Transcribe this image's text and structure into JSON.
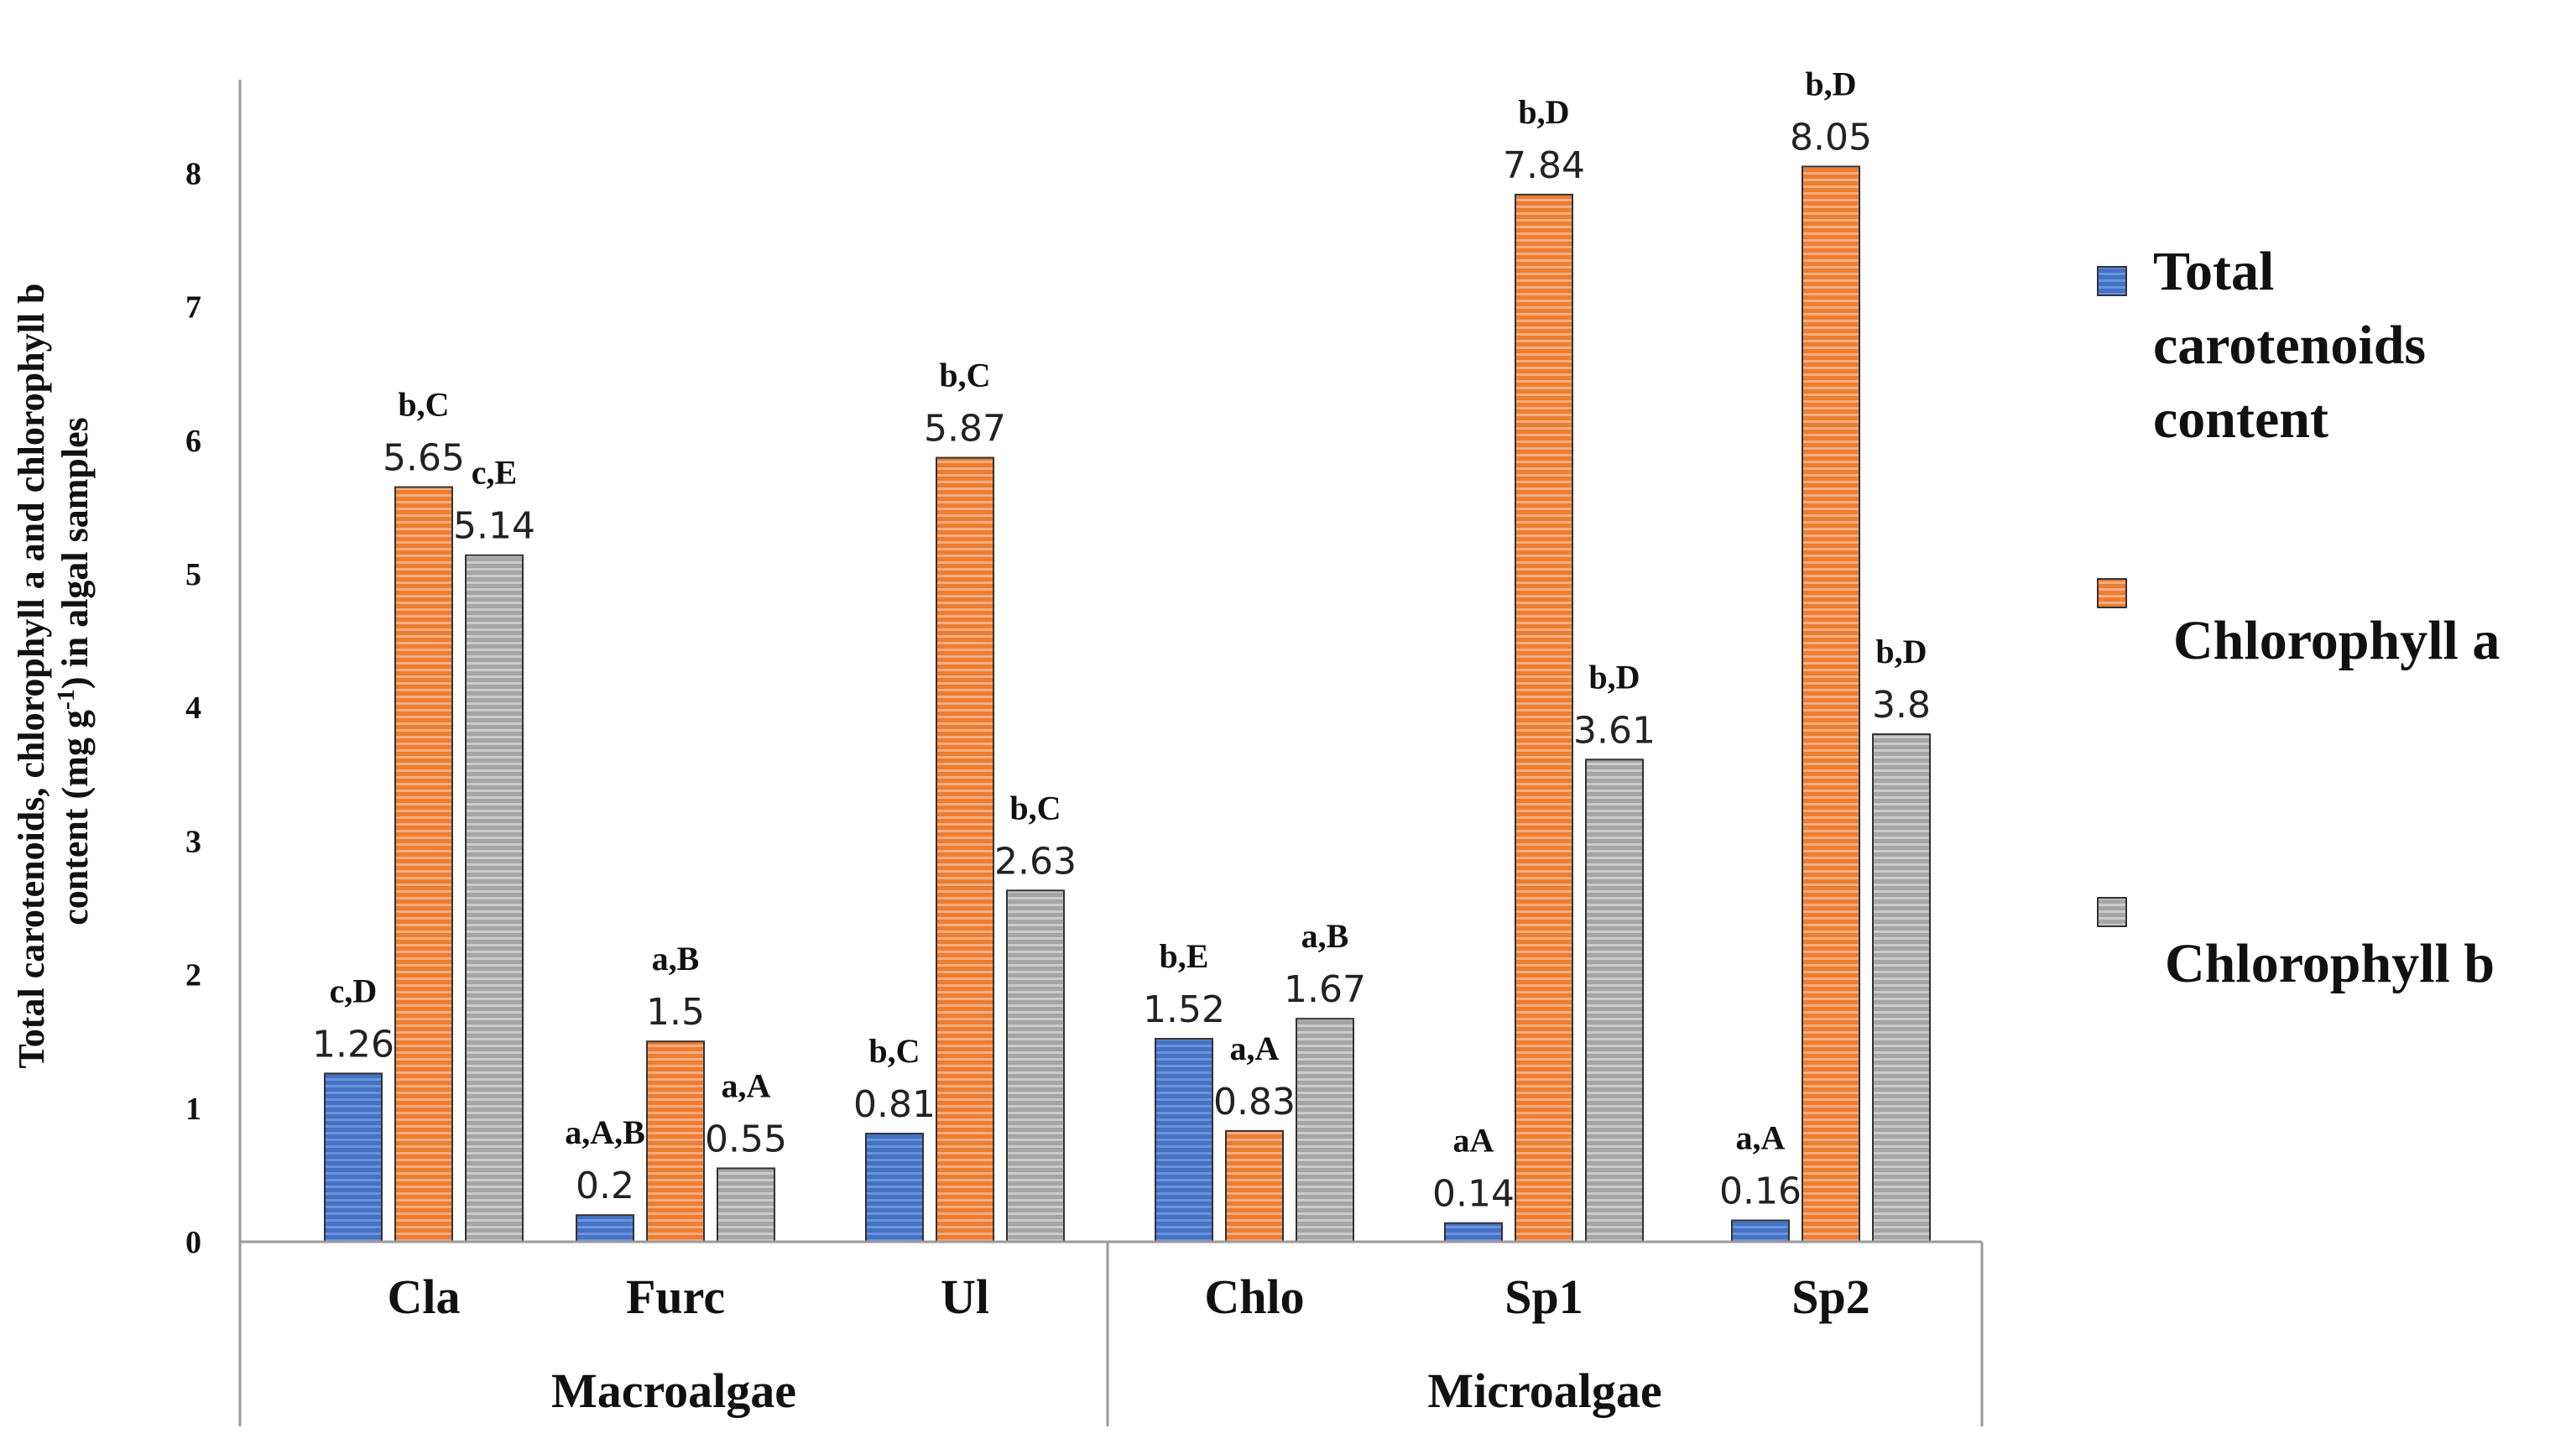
{
  "chart_data": {
    "type": "bar",
    "categories": [
      "Cla",
      "Furc",
      "Ul",
      "Chlo",
      "Sp1",
      "Sp2"
    ],
    "groups": [
      {
        "name": "Macroalgae",
        "categories": [
          "Cla",
          "Furc",
          "Ul"
        ]
      },
      {
        "name": "Microalgae",
        "categories": [
          "Chlo",
          "Sp1",
          "Sp2"
        ]
      }
    ],
    "series": [
      {
        "name": "Total carotenoids content",
        "legend_lines": [
          "Total",
          "carotenoids",
          "content"
        ],
        "color": "#4472C4",
        "values": [
          1.26,
          0.2,
          0.81,
          1.52,
          0.14,
          0.16
        ],
        "value_labels": [
          "1.26",
          "0.2",
          "0.81",
          "1.52",
          "0.14",
          "0.16"
        ],
        "sig_labels": [
          "c,D",
          "a,A,B",
          "b,C",
          "b,E",
          "aA",
          "a,A"
        ]
      },
      {
        "name": "Chlorophyll a",
        "legend_lines": [
          "Chlorophyll a"
        ],
        "color": "#ED7D31",
        "values": [
          5.65,
          1.5,
          5.87,
          0.83,
          7.84,
          8.05
        ],
        "value_labels": [
          "5.65",
          "1.5",
          "5.87",
          "0.83",
          "7.84",
          "8.05"
        ],
        "sig_labels": [
          "b,C",
          "a,B",
          "b,C",
          "a,A",
          "b,D",
          "b,D"
        ]
      },
      {
        "name": "Chlorophyll b",
        "legend_lines": [
          "Chlorophyll b"
        ],
        "color": "#A5A5A5",
        "values": [
          5.14,
          0.55,
          2.63,
          1.67,
          3.61,
          3.8
        ],
        "value_labels": [
          "5.14",
          "0.55",
          "2.63",
          "1.67",
          "3.61",
          "3.8"
        ],
        "sig_labels": [
          "c,E",
          "a,A",
          "b,C",
          "a,B",
          "b,D",
          "b,D"
        ]
      }
    ],
    "ylabel_lines": [
      "Total carotenoids, chlorophyll a and chlorophyll b",
      "content (mg g",
      "-1",
      ") in algal samples"
    ],
    "yticks": [
      "0",
      "1",
      "2",
      "3",
      "4",
      "5",
      "6",
      "7",
      "8"
    ],
    "ylim": [
      0,
      8.7
    ],
    "legend_position": "right",
    "grid": false
  }
}
